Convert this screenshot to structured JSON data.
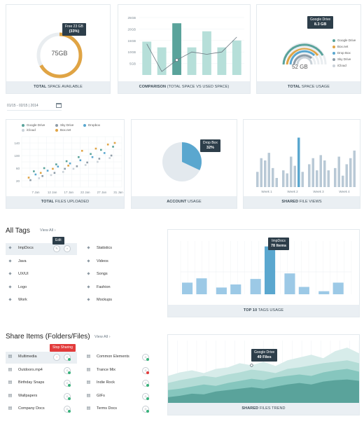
{
  "colors": {
    "teal": "#5aa39b",
    "teal_light": "#b6dfd9",
    "orange": "#e0a444",
    "blue": "#5aa7cf",
    "bar_blue": "#9cc9e6",
    "gray_bar": "#b9c9d6",
    "red": "#e23b3b",
    "green": "#38b27b"
  },
  "space_available": {
    "value": "75GB",
    "tooltip_title": "Free 23 GB",
    "tooltip_value": "(33%)",
    "caption_bold": "TOTAL",
    "caption_light": " SPACE AVAILABLE",
    "percent": 0.67
  },
  "comparison": {
    "caption_bold": "COMPARISON",
    "caption_light": " (TOTAL SPACE VS USED SPACE)",
    "chart_data": {
      "type": "bar",
      "categories": [
        "1",
        "2",
        "3",
        "4",
        "5",
        "6",
        "7"
      ],
      "series": [
        {
          "values": [
            14.5,
            12,
            22.5,
            12,
            19,
            12,
            15
          ]
        },
        {
          "values": [
            13.5,
            1.5,
            6.5,
            10,
            9,
            10,
            16.5
          ]
        }
      ],
      "ylim": [
        0,
        25
      ],
      "yticks": [
        "25GB",
        "20GB",
        "15GB",
        "10GB",
        "5GB"
      ]
    }
  },
  "space_usage": {
    "value": "52 GB",
    "tooltip_title": "Google Drive",
    "tooltip_value": "8.3 GB",
    "caption_bold": "TOTAL",
    "caption_light": " SPACE USAGE",
    "legend": [
      {
        "name": "Google Drive",
        "color": "#5aa39b"
      },
      {
        "name": "Box.net",
        "color": "#e0a444"
      },
      {
        "name": "Drop Box",
        "color": "#5aa7cf"
      },
      {
        "name": "Sky Drive",
        "color": "#8e9ca7"
      },
      {
        "name": "iCloud",
        "color": "#c9d1d8"
      }
    ]
  },
  "date_range": "01/15 - 02/15 | 2014",
  "files_uploaded": {
    "caption_bold": "TOTAL",
    "caption_light": " FILES UPLOADED",
    "legend": [
      {
        "name": "Google Drive",
        "color": "#5aa39b"
      },
      {
        "name": "Sky Drive",
        "color": "#8e9ca7"
      },
      {
        "name": "Dropbox",
        "color": "#5aa7cf"
      },
      {
        "name": "iCloud",
        "color": "#c9d1d8"
      },
      {
        "name": "Box.net",
        "color": "#e0a444"
      }
    ],
    "chart_data": {
      "type": "scatter",
      "x": [
        "7 Jan",
        "12 Jan",
        "17 Jan",
        "22 Jan",
        "27 Jan",
        "31 Jan"
      ],
      "yticks": [
        "140",
        "100",
        "60",
        "20"
      ],
      "ylim": [
        0,
        160
      ],
      "series": [
        {
          "name": "Google Drive",
          "points": [
            [
              0.3,
              50
            ],
            [
              0.9,
              60
            ],
            [
              1.6,
              72
            ],
            [
              2.2,
              82
            ],
            [
              2.9,
              95
            ],
            [
              3.6,
              105
            ],
            [
              4.2,
              118
            ],
            [
              4.9,
              128
            ]
          ]
        },
        {
          "name": "Sky Drive",
          "points": [
            [
              0.1,
              22
            ],
            [
              0.8,
              35
            ],
            [
              1.5,
              45
            ],
            [
              2.1,
              58
            ],
            [
              2.8,
              66
            ],
            [
              3.4,
              78
            ],
            [
              4.1,
              90
            ],
            [
              4.8,
              100
            ]
          ]
        },
        {
          "name": "Dropbox",
          "points": [
            [
              0.4,
              40
            ],
            [
              1.1,
              52
            ],
            [
              1.7,
              65
            ],
            [
              2.4,
              75
            ],
            [
              3.0,
              85
            ],
            [
              3.7,
              95
            ],
            [
              4.4,
              108
            ]
          ]
        },
        {
          "name": "iCloud",
          "points": [
            [
              0.6,
              28
            ],
            [
              1.3,
              38
            ],
            [
              2.0,
              48
            ],
            [
              2.6,
              58
            ],
            [
              3.3,
              70
            ],
            [
              4.0,
              80
            ],
            [
              4.7,
              92
            ]
          ]
        },
        {
          "name": "Box.net",
          "points": [
            [
              0.0,
              30
            ],
            [
              0.7,
              45
            ],
            [
              1.4,
              58
            ],
            [
              2.3,
              68
            ],
            [
              3.1,
              115
            ],
            [
              3.9,
              122
            ],
            [
              4.6,
              135
            ],
            [
              5.0,
              140
            ]
          ]
        }
      ]
    }
  },
  "account_usage": {
    "caption_bold": "ACCOUNT",
    "caption_light": " USAGE",
    "tooltip_title": "Drop Box",
    "tooltip_value": "32%",
    "chart_data": {
      "type": "pie",
      "slices": [
        {
          "name": "Drop Box",
          "value": 32
        },
        {
          "name": "Other",
          "value": 68
        }
      ]
    }
  },
  "shared_views": {
    "caption_bold": "SHARED",
    "caption_light": " FILE VIEWS",
    "chart_data": {
      "type": "bar",
      "categories": [
        "Week 1",
        "Week 2",
        "Week 3",
        "Week 4"
      ],
      "values": [
        [
          20,
          38,
          35,
          45,
          25,
          12
        ],
        [
          22,
          18,
          40,
          28,
          65,
          20
        ],
        [
          30,
          38,
          22,
          42,
          35,
          22
        ],
        [
          25,
          40,
          15,
          30,
          38,
          48
        ]
      ],
      "highlight": [
        1,
        4
      ]
    }
  },
  "tags": {
    "title": "All Tags",
    "view_all": "View All",
    "edit_tooltip": "Edit",
    "left": [
      "ImpDocs",
      "Java",
      "UX/UI",
      "Logo",
      "Work"
    ],
    "right": [
      "Statistics",
      "Videos",
      "Songs",
      "Fashion",
      "Mockups"
    ]
  },
  "top_tags": {
    "caption_bold": "TOP 10",
    "caption_light": " TAGS USAGE",
    "tooltip_title": "ImpDocs",
    "tooltip_value": "78 Items",
    "chart_data": {
      "type": "bar",
      "values": [
        19,
        26,
        11,
        16,
        25,
        78,
        34,
        12,
        5,
        19
      ],
      "ylim": [
        0,
        80
      ]
    }
  },
  "share": {
    "title": "Share Items (Folders/Files)",
    "view_all": "View All",
    "stop_tooltip": "Stop Sharing",
    "left": [
      "Multimedia",
      "Outdoors.mp4",
      "Birthday Snaps",
      "Wallpapers",
      "Company Docs"
    ],
    "right": [
      "Common Elements",
      "Trance Mix",
      "Indie Rock",
      "GIFs",
      "Terms Docs"
    ]
  },
  "files_trend": {
    "caption_bold": "SHARED",
    "caption_light": " FILES TREND",
    "tooltip_title": "Google Drive",
    "tooltip_value": "49 Files",
    "chart_data": {
      "type": "area",
      "series": [
        {
          "values": [
            40,
            45,
            48,
            44,
            50,
            52,
            58,
            55,
            60,
            54,
            62,
            66,
            70,
            65,
            75,
            80,
            72
          ]
        },
        {
          "values": [
            30,
            34,
            37,
            40,
            38,
            42,
            45,
            49,
            47,
            44,
            50,
            52,
            55,
            58,
            60,
            62,
            58
          ]
        },
        {
          "values": [
            20,
            22,
            25,
            28,
            26,
            30,
            33,
            36,
            34,
            38,
            40,
            42,
            40,
            45,
            48,
            50,
            46
          ]
        },
        {
          "values": [
            10,
            12,
            15,
            14,
            18,
            20,
            22,
            24,
            22,
            25,
            28,
            30,
            28,
            32,
            34,
            35,
            33
          ]
        }
      ]
    }
  }
}
